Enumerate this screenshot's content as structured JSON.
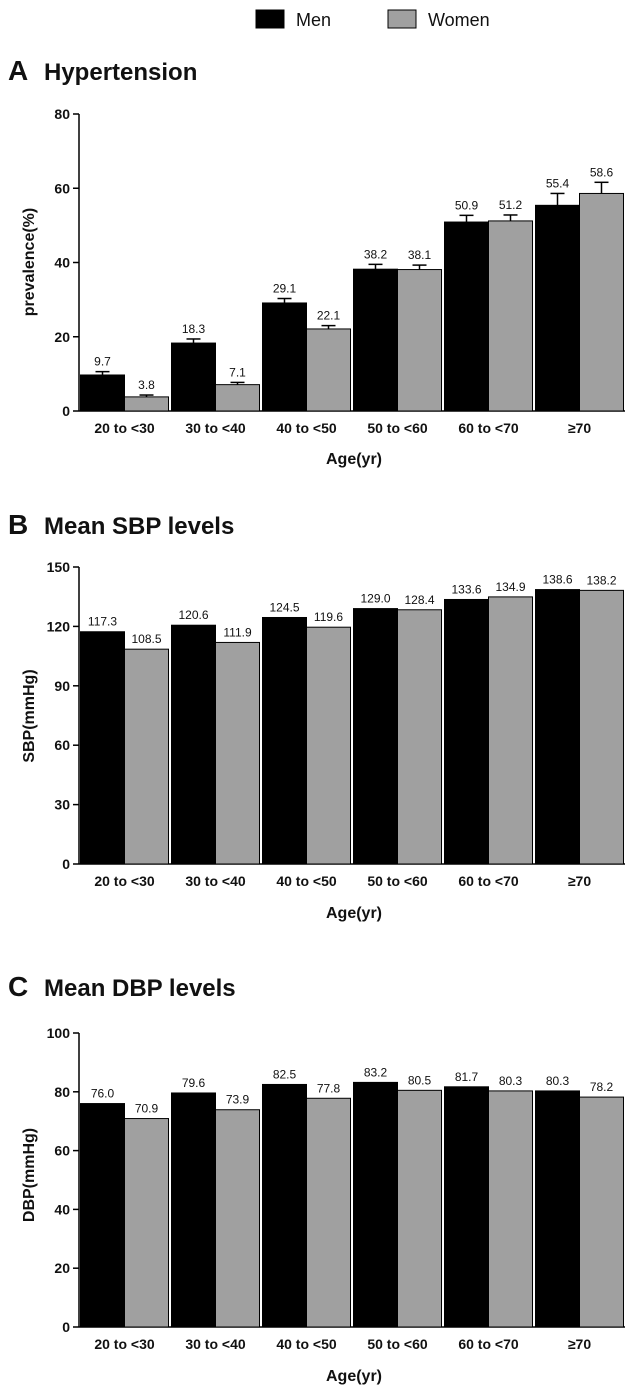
{
  "legend": [
    {
      "name": "Men",
      "color": "#000000"
    },
    {
      "name": "Women",
      "color": "#a0a0a0"
    }
  ],
  "chart_data": [
    {
      "type": "bar",
      "letter": "A",
      "title": "Hypertension",
      "xlabel": "Age(yr)",
      "ylabel": "prevalence(%)",
      "ylim": [
        0,
        80
      ],
      "yticks": [
        0,
        20,
        40,
        60,
        80
      ],
      "categories": [
        "20 to <30",
        "30 to <40",
        "40 to <50",
        "50 to <60",
        "60 to <70",
        "≥70"
      ],
      "error_bars": true,
      "series": [
        {
          "name": "Men",
          "color": "#000000",
          "values": [
            9.7,
            18.3,
            29.1,
            38.2,
            50.9,
            55.4
          ],
          "labels": [
            "9.7",
            "18.3",
            "29.1",
            "38.2",
            "50.9",
            "55.4"
          ],
          "errors": [
            0.9,
            1.1,
            1.2,
            1.3,
            1.8,
            3.2
          ]
        },
        {
          "name": "Women",
          "color": "#a0a0a0",
          "values": [
            3.8,
            7.1,
            22.1,
            38.1,
            51.2,
            58.6
          ],
          "labels": [
            "3.8",
            "7.1",
            "22.1",
            "38.1",
            "51.2",
            "58.6"
          ],
          "errors": [
            0.5,
            0.6,
            0.9,
            1.2,
            1.6,
            3.0
          ]
        }
      ]
    },
    {
      "type": "bar",
      "letter": "B",
      "title": "Mean SBP levels",
      "xlabel": "Age(yr)",
      "ylabel": "SBP(mmHg)",
      "ylim": [
        0,
        150
      ],
      "yticks": [
        0,
        30,
        60,
        90,
        120,
        150
      ],
      "categories": [
        "20 to <30",
        "30 to <40",
        "40 to <50",
        "50 to <60",
        "60 to <70",
        "≥70"
      ],
      "error_bars": false,
      "series": [
        {
          "name": "Men",
          "color": "#000000",
          "values": [
            117.3,
            120.6,
            124.5,
            129.0,
            133.6,
            138.6
          ],
          "labels": [
            "117.3",
            "120.6",
            "124.5",
            "129.0",
            "133.6",
            "138.6"
          ]
        },
        {
          "name": "Women",
          "color": "#a0a0a0",
          "values": [
            108.5,
            111.9,
            119.6,
            128.4,
            134.9,
            138.2
          ],
          "labels": [
            "108.5",
            "111.9",
            "119.6",
            "128.4",
            "134.9",
            "138.2"
          ]
        }
      ]
    },
    {
      "type": "bar",
      "letter": "C",
      "title": "Mean DBP levels",
      "xlabel": "Age(yr)",
      "ylabel": "DBP(mmHg)",
      "ylim": [
        0,
        100
      ],
      "yticks": [
        0,
        20,
        40,
        60,
        80,
        100
      ],
      "categories": [
        "20 to <30",
        "30 to <40",
        "40 to <50",
        "50 to <60",
        "60 to <70",
        "≥70"
      ],
      "error_bars": false,
      "series": [
        {
          "name": "Men",
          "color": "#000000",
          "values": [
            76.0,
            79.6,
            82.5,
            83.2,
            81.7,
            80.3
          ],
          "labels": [
            "76.0",
            "79.6",
            "82.5",
            "83.2",
            "81.7",
            "80.3"
          ]
        },
        {
          "name": "Women",
          "color": "#a0a0a0",
          "values": [
            70.9,
            73.9,
            77.8,
            80.5,
            80.3,
            78.2
          ],
          "labels": [
            "70.9",
            "73.9",
            "77.8",
            "80.5",
            "80.3",
            "78.2"
          ]
        }
      ]
    }
  ]
}
